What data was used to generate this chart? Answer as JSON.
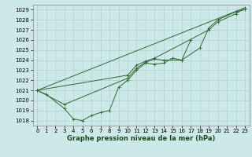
{
  "background_color": "#cce8e8",
  "grid_color": "#aacccc",
  "line_color": "#2d6a2d",
  "xlabel": "Graphe pression niveau de la mer (hPa)",
  "xlim": [
    -0.5,
    23.5
  ],
  "ylim": [
    1017.5,
    1029.5
  ],
  "yticks": [
    1018,
    1019,
    1020,
    1021,
    1022,
    1023,
    1024,
    1025,
    1026,
    1027,
    1028,
    1029
  ],
  "xticks": [
    0,
    1,
    2,
    3,
    4,
    5,
    6,
    7,
    8,
    9,
    10,
    11,
    12,
    13,
    14,
    15,
    16,
    17,
    18,
    19,
    20,
    21,
    22,
    23
  ],
  "line1_x": [
    0,
    1,
    3,
    4,
    5,
    6,
    7,
    8,
    9,
    10,
    11,
    12,
    13,
    14,
    15,
    16,
    17
  ],
  "line1_y": [
    1021.0,
    1020.6,
    1019.2,
    1018.15,
    1018.0,
    1018.5,
    1018.8,
    1019.0,
    1021.3,
    1022.0,
    1023.0,
    1023.7,
    1023.6,
    1023.7,
    1024.2,
    1024.0,
    1026.0
  ],
  "line2_x": [
    0,
    3,
    10,
    11,
    12,
    13,
    14,
    16,
    18,
    19,
    20,
    22,
    23
  ],
  "line2_y": [
    1021.0,
    1019.6,
    1022.2,
    1023.2,
    1023.8,
    1024.1,
    1024.0,
    1024.0,
    1025.2,
    1027.2,
    1028.0,
    1028.8,
    1029.0
  ],
  "line3_x": [
    0,
    10,
    11,
    12,
    13,
    19,
    20,
    22,
    23
  ],
  "line3_y": [
    1021.0,
    1022.5,
    1023.5,
    1023.9,
    1024.2,
    1027.0,
    1027.8,
    1028.6,
    1029.2
  ],
  "line4_x": [
    0,
    23
  ],
  "line4_y": [
    1021.0,
    1029.2
  ],
  "tick_fontsize": 5,
  "xlabel_fontsize": 6,
  "linewidth": 0.7,
  "markersize": 2.5,
  "markeredgewidth": 0.6
}
